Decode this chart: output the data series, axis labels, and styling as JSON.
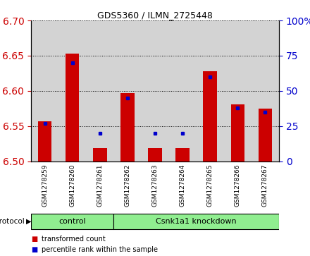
{
  "title": "GDS5360 / ILMN_2725448",
  "samples": [
    "GSM1278259",
    "GSM1278260",
    "GSM1278261",
    "GSM1278262",
    "GSM1278263",
    "GSM1278264",
    "GSM1278265",
    "GSM1278266",
    "GSM1278267"
  ],
  "red_values": [
    6.557,
    6.653,
    6.519,
    6.597,
    6.519,
    6.519,
    6.628,
    6.581,
    6.575
  ],
  "blue_values_pct": [
    27,
    70,
    20,
    45,
    20,
    20,
    60,
    38,
    35
  ],
  "ylim_left": [
    6.5,
    6.7
  ],
  "ylim_right": [
    0,
    100
  ],
  "yticks_left": [
    6.5,
    6.55,
    6.6,
    6.65,
    6.7
  ],
  "yticks_right": [
    0,
    25,
    50,
    75,
    100
  ],
  "control_count": 3,
  "protocol_labels": [
    "control",
    "Csnk1a1 knockdown"
  ],
  "bar_color": "#cc0000",
  "dot_color": "#0000cc",
  "bg_color": "#d3d3d3",
  "plot_bg": "#ffffff",
  "left_tick_color": "#cc0000",
  "right_tick_color": "#0000cc",
  "legend_items": [
    "transformed count",
    "percentile rank within the sample"
  ]
}
